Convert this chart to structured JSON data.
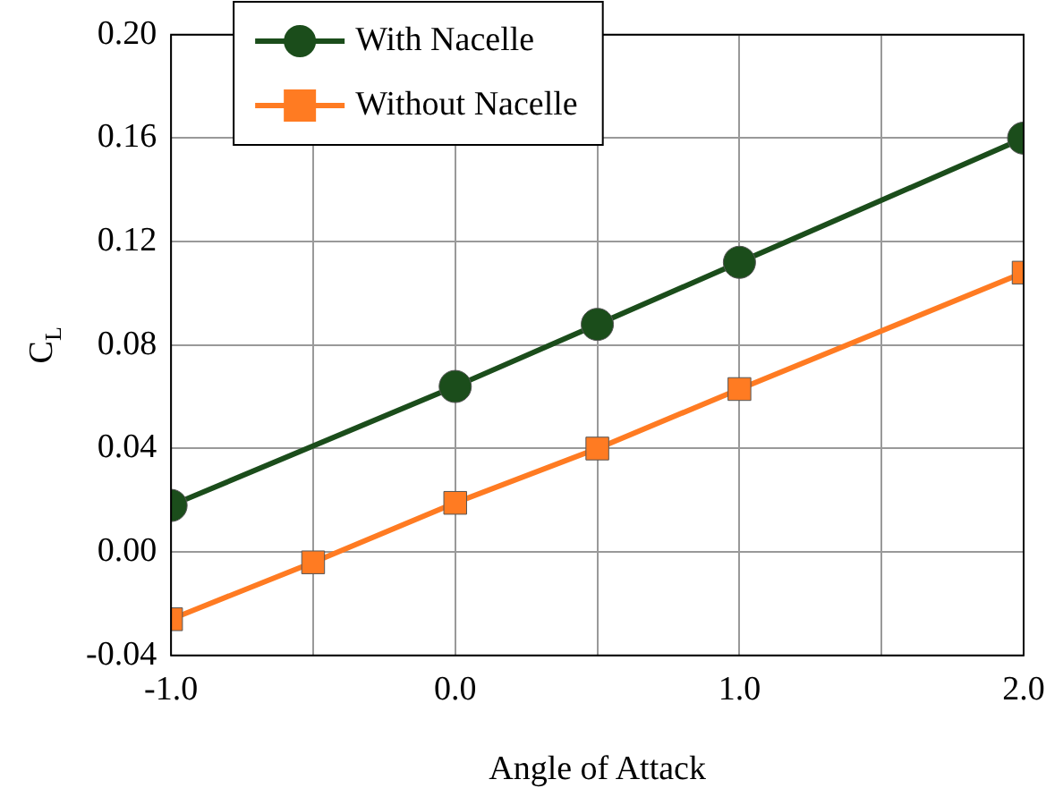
{
  "chart_data": {
    "type": "line",
    "xlabel": "Angle of Attack",
    "ylabel": "C$_{L}$",
    "series": [
      {
        "name": "With Nacelle",
        "color": "#1b4d1b",
        "marker": "circle",
        "x": [
          -1.0,
          0.0,
          0.5,
          1.0,
          2.0
        ],
        "values": [
          0.018,
          0.064,
          0.088,
          0.112,
          0.16
        ]
      },
      {
        "name": "Without Nacelle",
        "color": "#ff7b22",
        "marker": "square",
        "x": [
          -1.0,
          -0.5,
          0.0,
          0.5,
          1.0,
          2.0
        ],
        "values": [
          -0.026,
          -0.004,
          0.019,
          0.04,
          0.063,
          0.108
        ]
      }
    ],
    "xlim": [
      -1.0,
      2.0
    ],
    "xticks": [
      {
        "value": -1.0,
        "label": "-1.0"
      },
      {
        "value": -0.5,
        "label": null
      },
      {
        "value": 0.0,
        "label": "0.0"
      },
      {
        "value": 0.5,
        "label": null
      },
      {
        "value": 1.0,
        "label": "1.0"
      },
      {
        "value": 1.5,
        "label": null
      },
      {
        "value": 2.0,
        "label": "2.0"
      }
    ],
    "ylim": [
      -0.04,
      0.2
    ],
    "yticks": [
      {
        "value": -0.04,
        "label": "-0.04"
      },
      {
        "value": 0.0,
        "label": "0.00"
      },
      {
        "value": 0.04,
        "label": "0.04"
      },
      {
        "value": 0.08,
        "label": "0.08"
      },
      {
        "value": 0.12,
        "label": "0.12"
      },
      {
        "value": 0.16,
        "label": "0.16"
      },
      {
        "value": 0.2,
        "label": "0.20"
      }
    ],
    "grid": true,
    "legend": "top left"
  }
}
